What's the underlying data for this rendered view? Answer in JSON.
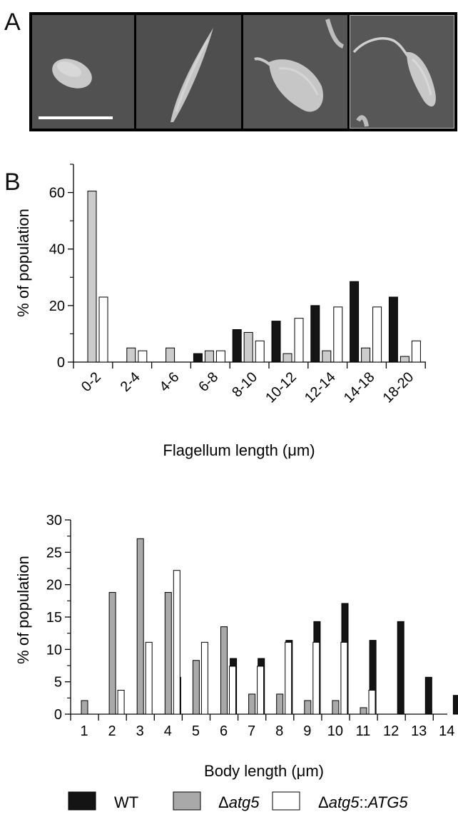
{
  "panel_labels": {
    "a": "A",
    "b": "B"
  },
  "micrographs": {
    "tiles": [
      {
        "name": "cell-ovoid",
        "flagellum": "none"
      },
      {
        "name": "cell-elongated",
        "flagellum": "none"
      },
      {
        "name": "cell-short-flagellum",
        "flagellum": "short"
      },
      {
        "name": "cell-long-flagellum",
        "flagellum": "long"
      }
    ],
    "scale_bar": "white"
  },
  "legend": {
    "items": [
      {
        "label": "WT",
        "color": "#141414",
        "italic_part": ""
      },
      {
        "label": "Δatg5",
        "color": "#a9a9a9",
        "prefix": "Δ",
        "italic_part": "atg5",
        "suffix": ""
      },
      {
        "label": "Δatg5::ATG5",
        "color": "#ffffff",
        "prefix": "Δ",
        "italic_part": "atg5",
        "suffix_plain": "::",
        "suffix_italic": "ATG5"
      }
    ]
  },
  "chart_data": [
    {
      "type": "bar",
      "name": "flagellum-length",
      "categories": [
        "0-2",
        "2-4",
        "4-6",
        "6-8",
        "8-10",
        "10-12",
        "12-14",
        "14-18",
        "18-20"
      ],
      "series": [
        {
          "name": "WT",
          "color": "#141414",
          "values": [
            0,
            0,
            0,
            3,
            11.5,
            14.5,
            20,
            28.5,
            23
          ]
        },
        {
          "name": "Δatg5",
          "color": "#cccccc",
          "values": [
            60.5,
            5,
            5,
            4,
            10.5,
            3,
            4,
            5,
            2
          ]
        },
        {
          "name": "Δatg5::ATG5",
          "color": "#ffffff",
          "values": [
            23,
            4,
            0,
            4,
            7.5,
            15.5,
            19.5,
            19.5,
            7.5
          ]
        }
      ],
      "xlabel": "Flagellum length (μm)",
      "ylabel": "% of population",
      "ylim": [
        0,
        70
      ],
      "yticks": [
        0,
        20,
        40,
        60
      ],
      "grid": false,
      "legend": "bottom"
    },
    {
      "type": "bar",
      "name": "body-length",
      "categories": [
        "1",
        "2",
        "3",
        "4",
        "5",
        "6",
        "7",
        "8",
        "9",
        "10",
        "11",
        "12",
        "13",
        "14"
      ],
      "series": [
        {
          "name": "WT",
          "color": "#141414",
          "values": [
            0,
            0,
            0,
            5.7,
            0,
            8.6,
            8.6,
            11.4,
            14.3,
            17.1,
            11.4,
            14.3,
            5.7,
            2.9
          ]
        },
        {
          "name": "Δatg5",
          "color": "#a9a9a9",
          "values": [
            2.1,
            18.8,
            27.1,
            18.8,
            8.3,
            13.5,
            3.1,
            3.1,
            2.1,
            2.1,
            1.0,
            0,
            0,
            0
          ]
        },
        {
          "name": "Δatg5::ATG5",
          "color": "#ffffff",
          "values": [
            0,
            3.7,
            11.1,
            22.2,
            11.1,
            7.4,
            7.4,
            11.1,
            11.1,
            11.1,
            3.7,
            0,
            0,
            0
          ]
        }
      ],
      "xlabel": "Body length (μm)",
      "ylabel": "% of population",
      "ylim": [
        0,
        30
      ],
      "yticks": [
        0,
        5,
        10,
        15,
        20,
        25,
        30
      ],
      "grid": false,
      "legend": "bottom"
    }
  ]
}
